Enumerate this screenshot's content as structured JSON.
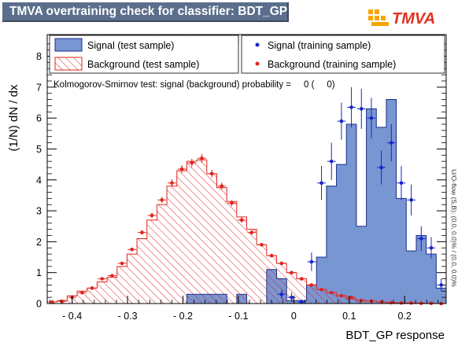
{
  "header": {
    "title": "TMVA overtraining check for classifier: BDT_GP"
  },
  "logo": {
    "text": "TMVA"
  },
  "chart_data": {
    "type": "histogram",
    "xlabel": "BDT_GP response",
    "ylabel": "(1/N) dN / dx",
    "xlim": [
      -0.445,
      0.275
    ],
    "ylim": [
      0,
      8.7
    ],
    "x_ticks": [
      "- 0.4",
      "- 0.3",
      "- 0.2",
      "- 0.1",
      "0",
      "0.1",
      "0.2"
    ],
    "y_ticks": [
      "0",
      "1",
      "2",
      "3",
      "4",
      "5",
      "6",
      "7",
      "8"
    ],
    "bin_width": 0.018,
    "x_start": -0.445,
    "legend": {
      "signal_test": "Signal (test sample)",
      "background_test": "Background (test sample)",
      "signal_train": "Signal (training sample)",
      "background_train": "Background (training sample)"
    },
    "ks_text": "Kolmogorov-Smirnov test: signal (background) probability =     0 (     0)",
    "overflow_text": "U/O-flow (S,B): (0.0, 0.0)% / (0.0, 0.0)%",
    "colors": {
      "signal_fill": "#7896d2",
      "signal_line": "#1a2f8a",
      "background": "#e0231f",
      "signal_point": "#1426c8"
    },
    "series": [
      {
        "name": "Signal (test sample)",
        "values": [
          0,
          0,
          0,
          0,
          0,
          0,
          0,
          0,
          0,
          0,
          0,
          0,
          0,
          0,
          0.3,
          0.3,
          0.3,
          0.3,
          0,
          0.3,
          0,
          0,
          1.1,
          0.8,
          0.1,
          0.1,
          0.6,
          1.5,
          3.8,
          4.5,
          5.8,
          2.5,
          6.3,
          5.7,
          6.6,
          3.4,
          1.7,
          2.2,
          1.6,
          0.5
        ]
      },
      {
        "name": "Background (test sample)",
        "values": [
          0.05,
          0.1,
          0.25,
          0.4,
          0.5,
          0.7,
          0.85,
          1.2,
          1.6,
          2.1,
          2.7,
          3.2,
          3.8,
          4.3,
          4.6,
          4.65,
          4.2,
          3.75,
          3.3,
          2.8,
          2.4,
          1.9,
          1.55,
          1.3,
          1.0,
          0.8,
          0.6,
          0.45,
          0.35,
          0.25,
          0.15,
          0.1,
          0.08,
          0.05,
          0.03,
          0.02,
          0.01,
          0.01,
          0,
          0
        ]
      },
      {
        "name": "Signal (training sample)",
        "values": [
          null,
          null,
          null,
          null,
          null,
          null,
          null,
          null,
          null,
          null,
          null,
          null,
          null,
          null,
          null,
          null,
          null,
          null,
          null,
          null,
          null,
          null,
          null,
          0.3,
          0.2,
          0.05,
          1.35,
          3.9,
          4.6,
          5.9,
          6.35,
          6.3,
          6.0,
          4.4,
          5.2,
          3.9,
          3.35,
          2.1,
          1.8,
          0.6
        ],
        "errors": [
          0,
          0,
          0,
          0,
          0,
          0,
          0,
          0,
          0,
          0,
          0,
          0,
          0,
          0,
          0,
          0,
          0,
          0,
          0,
          0,
          0,
          0,
          0,
          0.15,
          0.15,
          0.08,
          0.3,
          0.55,
          0.6,
          0.6,
          0.65,
          0.65,
          0.65,
          0.55,
          0.6,
          0.55,
          0.5,
          0.4,
          0.35,
          0.2
        ]
      },
      {
        "name": "Background (training sample)",
        "values": [
          0.05,
          0.07,
          0.2,
          0.35,
          0.5,
          0.8,
          0.9,
          1.3,
          1.75,
          2.3,
          2.85,
          3.35,
          3.9,
          4.35,
          4.55,
          4.7,
          4.2,
          3.8,
          3.25,
          2.7,
          2.3,
          1.9,
          1.55,
          1.3,
          1.0,
          0.8,
          0.6,
          0.45,
          0.35,
          0.25,
          0.2,
          0.1,
          0.08,
          0.05,
          0.03,
          0.02,
          0.02,
          0.01,
          0.01,
          0
        ]
      }
    ]
  }
}
